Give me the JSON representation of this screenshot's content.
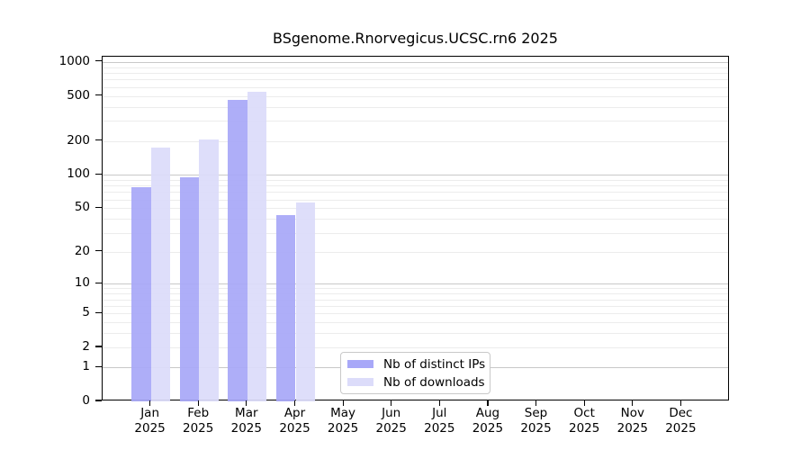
{
  "chart_data": {
    "type": "bar",
    "title": "BSgenome.Rnorvegicus.UCSC.rn6 2025",
    "categories": [
      "Jan 2025",
      "Feb 2025",
      "Mar 2025",
      "Apr 2025",
      "May 2025",
      "Jun 2025",
      "Jul 2025",
      "Aug 2025",
      "Sep 2025",
      "Oct 2025",
      "Nov 2025",
      "Dec 2025"
    ],
    "series": [
      {
        "name": "Nb of distinct IPs",
        "color": "#a8a8f8",
        "values": [
          78,
          95,
          465,
          43,
          0,
          0,
          0,
          0,
          0,
          0,
          0,
          0
        ]
      },
      {
        "name": "Nb of downloads",
        "color": "#dcdcfa",
        "values": [
          175,
          205,
          545,
          56,
          0,
          0,
          0,
          0,
          0,
          0,
          0,
          0
        ]
      }
    ],
    "y_ticks": [
      0,
      1,
      2,
      5,
      10,
      20,
      50,
      100,
      200,
      500,
      1000
    ],
    "y_scale": "log1p",
    "ylim": [
      0,
      1113
    ],
    "grid": true,
    "legend_position": "bottom-center-inside",
    "axis_color": "#000000",
    "grid_minor_color": "#ececec",
    "grid_major_color": "#c8c8c8"
  }
}
